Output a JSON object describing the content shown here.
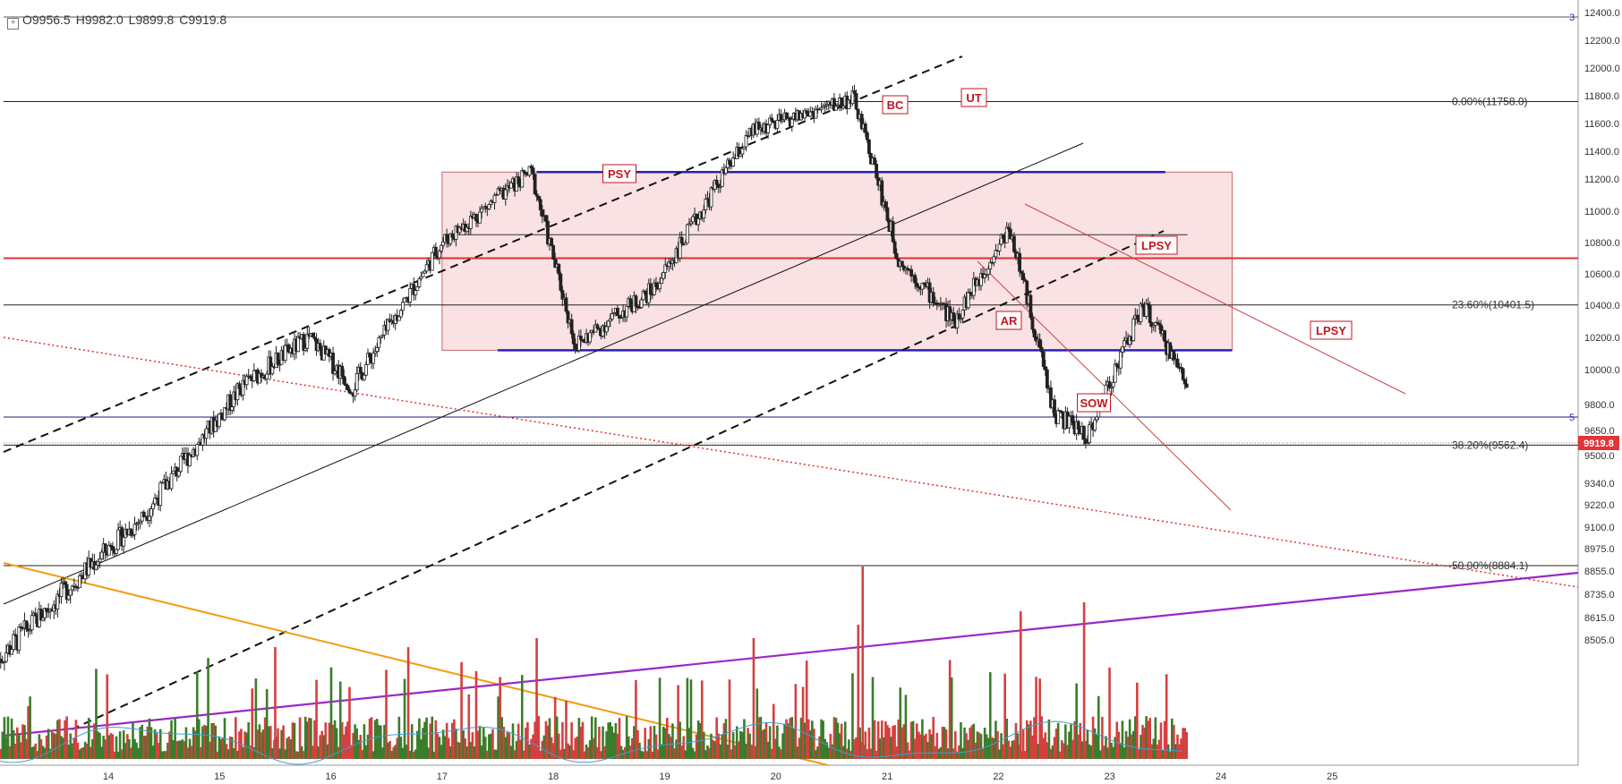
{
  "ohlc": {
    "open": "O9956.5",
    "high": "H9982.0",
    "low": "L9899.8",
    "close": "C9919.8"
  },
  "last_price_label": "9919.8",
  "colors": {
    "up": "#3a7d2a",
    "down": "#d44040",
    "candle": "#222222",
    "zone": "#f8d7da",
    "blue_line": "#2a1fb8",
    "red_line": "#e03030",
    "orange": "#f39c12",
    "purple": "#9b27c7",
    "label_red": "#c0171e"
  },
  "chart_data": {
    "type": "candlestick",
    "xlabel": "",
    "ylabel": "",
    "x_ticks": [
      "14",
      "15",
      "16",
      "17",
      "18",
      "19",
      "20",
      "21",
      "22",
      "23",
      "24",
      "25"
    ],
    "y_ticks": [
      "12400.0",
      "12200.0",
      "12000.0",
      "11800.0",
      "11600.0",
      "11400.0",
      "11200.0",
      "11000.0",
      "10800.0",
      "10600.0",
      "10400.0",
      "10200.0",
      "10000.0",
      "9800.0",
      "9650.0",
      "9500.0",
      "9340.0",
      "9220.0",
      "9100.0",
      "8975.0",
      "8855.0",
      "8735.0",
      "8615.0",
      "8505.0"
    ],
    "fib_levels": [
      {
        "label": "0.00%(11758.0)",
        "value": 11758.0
      },
      {
        "label": "23.60%(10401.5)",
        "value": 10401.5
      },
      {
        "label": "38.20%(9562.4)",
        "value": 9562.4
      },
      {
        "label": "50.00%(8884.1)",
        "value": 8884.1
      }
    ],
    "annotations": [
      "PSY",
      "BC",
      "UT",
      "AR",
      "LPSY",
      "LPSY",
      "SOW"
    ],
    "right_markers": [
      "3",
      "5"
    ],
    "key_points": [
      {
        "x": "13.0",
        "y": 8400
      },
      {
        "x": "14.3",
        "y": 9150
      },
      {
        "x": "15.2",
        "y": 9900
      },
      {
        "x": "15.8",
        "y": 10200
      },
      {
        "x": "16.2",
        "y": 9900
      },
      {
        "x": "17.0",
        "y": 10800
      },
      {
        "x": "17.8",
        "y": 11250
      },
      {
        "x": "18.2",
        "y": 10150
      },
      {
        "x": "18.9",
        "y": 10500
      },
      {
        "x": "19.8",
        "y": 11550
      },
      {
        "x": "20.7",
        "y": 11780
      },
      {
        "x": "21.1",
        "y": 10700
      },
      {
        "x": "21.6",
        "y": 10300
      },
      {
        "x": "22.1",
        "y": 10900
      },
      {
        "x": "22.5",
        "y": 9750
      },
      {
        "x": "22.8",
        "y": 9620
      },
      {
        "x": "23.3",
        "y": 10400
      },
      {
        "x": "23.7",
        "y": 9920
      }
    ]
  }
}
